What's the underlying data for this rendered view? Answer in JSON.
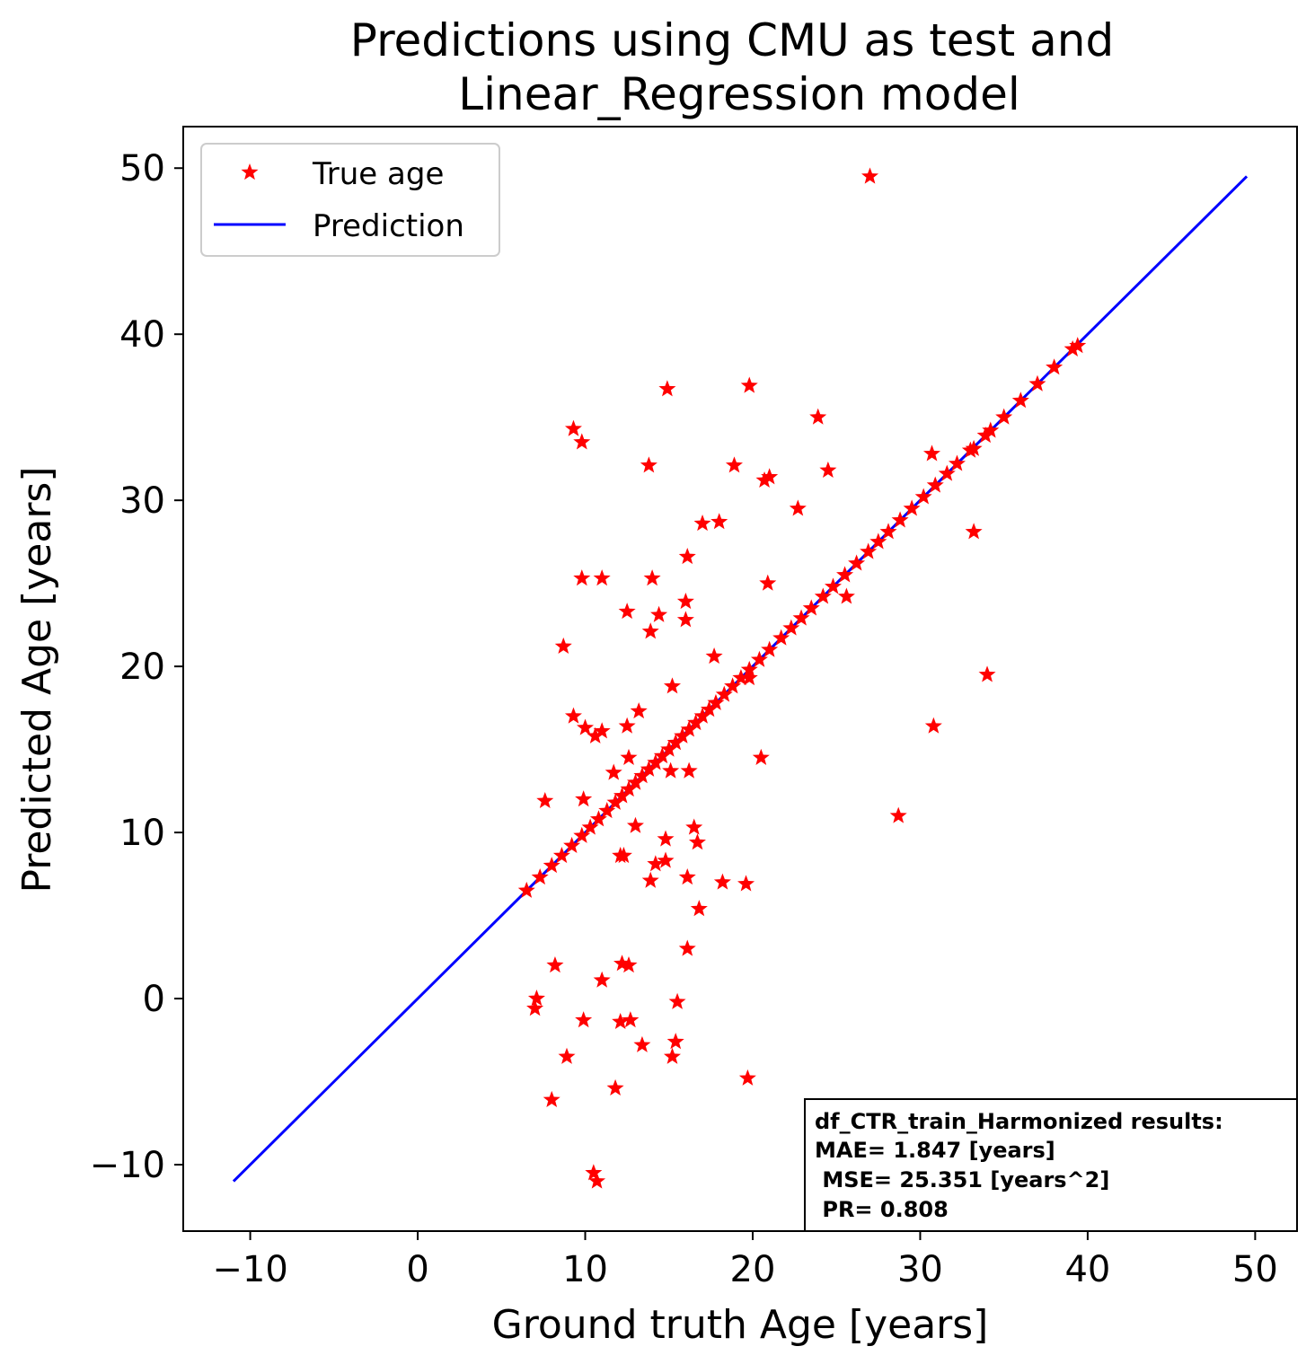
{
  "chart_data": {
    "type": "scatter",
    "title_lines": [
      "Predictions using CMU as test and",
      "Linear_Regression model"
    ],
    "xlabel": "Ground truth Age [years]",
    "ylabel": "Predicted Age [years]",
    "xlim": [
      -14,
      52.5
    ],
    "ylim": [
      -14,
      52.5
    ],
    "xticks": [
      -10,
      0,
      10,
      20,
      30,
      40,
      50
    ],
    "yticks": [
      -10,
      0,
      10,
      20,
      30,
      40,
      50
    ],
    "xtick_labels": [
      "−10",
      "0",
      "10",
      "20",
      "30",
      "40",
      "50"
    ],
    "ytick_labels": [
      "−10",
      "0",
      "10",
      "20",
      "30",
      "40",
      "50"
    ],
    "grid": false,
    "legend_position": "top-left",
    "colors": {
      "true_age": "#ff0000",
      "prediction": "#0000ff"
    },
    "series": [
      {
        "name": "True age",
        "marker": "star",
        "points": [
          [
            27.0,
            49.5
          ],
          [
            14.9,
            36.7
          ],
          [
            19.8,
            36.9
          ],
          [
            9.3,
            34.3
          ],
          [
            9.8,
            33.5
          ],
          [
            23.9,
            35.0
          ],
          [
            13.8,
            32.1
          ],
          [
            18.9,
            32.1
          ],
          [
            20.7,
            31.2
          ],
          [
            21.0,
            31.4
          ],
          [
            24.5,
            31.8
          ],
          [
            22.7,
            29.5
          ],
          [
            17.0,
            28.6
          ],
          [
            18.0,
            28.7
          ],
          [
            16.1,
            26.6
          ],
          [
            9.8,
            25.3
          ],
          [
            11.0,
            25.3
          ],
          [
            14.0,
            25.3
          ],
          [
            20.9,
            25.0
          ],
          [
            33.2,
            28.1
          ],
          [
            16.0,
            23.9
          ],
          [
            12.5,
            23.3
          ],
          [
            14.4,
            23.1
          ],
          [
            16.0,
            22.8
          ],
          [
            13.9,
            22.1
          ],
          [
            25.6,
            24.2
          ],
          [
            8.7,
            21.2
          ],
          [
            17.7,
            20.6
          ],
          [
            15.2,
            18.8
          ],
          [
            13.2,
            17.3
          ],
          [
            9.3,
            17.0
          ],
          [
            10.0,
            16.3
          ],
          [
            10.6,
            15.8
          ],
          [
            11.0,
            16.1
          ],
          [
            12.5,
            16.4
          ],
          [
            34.0,
            19.5
          ],
          [
            30.8,
            16.4
          ],
          [
            20.5,
            14.5
          ],
          [
            12.6,
            14.5
          ],
          [
            15.1,
            13.7
          ],
          [
            16.2,
            13.7
          ],
          [
            11.7,
            13.6
          ],
          [
            7.6,
            11.9
          ],
          [
            9.9,
            12.0
          ],
          [
            28.7,
            11.0
          ],
          [
            13.0,
            10.4
          ],
          [
            16.5,
            10.3
          ],
          [
            14.8,
            9.6
          ],
          [
            16.7,
            9.4
          ],
          [
            12.1,
            8.6
          ],
          [
            12.3,
            8.6
          ],
          [
            14.2,
            8.1
          ],
          [
            14.8,
            8.3
          ],
          [
            13.9,
            7.1
          ],
          [
            16.1,
            7.3
          ],
          [
            18.2,
            7.0
          ],
          [
            19.6,
            6.9
          ],
          [
            16.8,
            5.4
          ],
          [
            16.1,
            3.0
          ],
          [
            8.2,
            2.0
          ],
          [
            12.2,
            2.1
          ],
          [
            12.6,
            2.0
          ],
          [
            11.0,
            1.1
          ],
          [
            7.1,
            0.0
          ],
          [
            7.0,
            -0.6
          ],
          [
            15.5,
            -0.2
          ],
          [
            9.9,
            -1.3
          ],
          [
            12.1,
            -1.4
          ],
          [
            12.7,
            -1.3
          ],
          [
            13.4,
            -2.8
          ],
          [
            15.4,
            -2.6
          ],
          [
            8.9,
            -3.5
          ],
          [
            15.2,
            -3.5
          ],
          [
            19.7,
            -4.8
          ],
          [
            11.8,
            -5.4
          ],
          [
            8.0,
            -6.1
          ],
          [
            10.5,
            -10.5
          ],
          [
            10.7,
            -11.0
          ],
          [
            6.5,
            6.5
          ],
          [
            7.3,
            7.3
          ],
          [
            8.0,
            8.0
          ],
          [
            8.6,
            8.6
          ],
          [
            9.2,
            9.2
          ],
          [
            9.8,
            9.8
          ],
          [
            10.3,
            10.3
          ],
          [
            10.8,
            10.8
          ],
          [
            11.3,
            11.3
          ],
          [
            11.8,
            11.8
          ],
          [
            12.2,
            12.2
          ],
          [
            12.6,
            12.6
          ],
          [
            13.0,
            13.0
          ],
          [
            13.4,
            13.4
          ],
          [
            13.8,
            13.8
          ],
          [
            14.2,
            14.2
          ],
          [
            14.6,
            14.6
          ],
          [
            15.0,
            15.0
          ],
          [
            15.4,
            15.4
          ],
          [
            15.8,
            15.8
          ],
          [
            16.2,
            16.2
          ],
          [
            16.6,
            16.6
          ],
          [
            17.0,
            17.0
          ],
          [
            17.4,
            17.4
          ],
          [
            17.8,
            17.8
          ],
          [
            18.3,
            18.3
          ],
          [
            18.8,
            18.8
          ],
          [
            19.3,
            19.3
          ],
          [
            19.8,
            19.8
          ],
          [
            20.4,
            20.4
          ],
          [
            21.0,
            21.0
          ],
          [
            21.7,
            21.7
          ],
          [
            22.3,
            22.3
          ],
          [
            22.9,
            22.9
          ],
          [
            23.5,
            23.5
          ],
          [
            24.2,
            24.2
          ],
          [
            24.8,
            24.8
          ],
          [
            25.5,
            25.5
          ],
          [
            26.2,
            26.2
          ],
          [
            26.9,
            26.9
          ],
          [
            27.5,
            27.5
          ],
          [
            28.1,
            28.1
          ],
          [
            28.8,
            28.8
          ],
          [
            29.5,
            29.5
          ],
          [
            30.2,
            30.2
          ],
          [
            30.9,
            30.9
          ],
          [
            31.6,
            31.6
          ],
          [
            32.2,
            32.2
          ],
          [
            33.0,
            33.0
          ],
          [
            33.9,
            33.9
          ],
          [
            35.0,
            35.0
          ],
          [
            36.0,
            36.0
          ],
          [
            37.0,
            37.0
          ],
          [
            38.0,
            38.0
          ],
          [
            39.1,
            39.1
          ],
          [
            39.4,
            39.3
          ],
          [
            19.8,
            19.3
          ],
          [
            30.7,
            32.8
          ],
          [
            33.2,
            33.1
          ],
          [
            34.2,
            34.2
          ]
        ]
      },
      {
        "name": "Prediction",
        "marker": "line",
        "points": [
          [
            -11.0,
            -11.0
          ],
          [
            49.5,
            49.5
          ]
        ]
      }
    ],
    "annotation_lines": [
      "df_CTR_train_Harmonized results:",
      "MAE= 1.847 [years]",
      " MSE= 25.351 [years^2]",
      " PR= 0.808"
    ]
  }
}
